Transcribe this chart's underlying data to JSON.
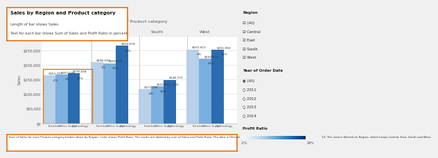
{
  "title": "Sales by Region and Product category",
  "subtitle_line1": "Length of bar shows Sales.",
  "subtitle_line2": "Text for each bar shows Sum of Sales and Profit Ratio in percent.",
  "xlabel": "Region / Product category",
  "ylabel": "Sales",
  "footer": "Sum of Sales for each Product category broken down by Region. Color shows Profit Ratio. The marks are labeled by sum of Sales and Profit Ratio. The data is filtered on Order Date Year, which keeps 2011, 2012, 2013 and 2014. The view is filtered on Region, which keeps Central, East, South and West.",
  "regions": [
    "Central",
    "East",
    "South",
    "West"
  ],
  "categories": [
    "Furniture",
    "Office Suppl.",
    "Technology"
  ],
  "bars": [
    {
      "region": "Central",
      "category": "Furniture",
      "value": 163797,
      "profit_ratio": -2,
      "color": "#b8d0e8"
    },
    {
      "region": "Central",
      "category": "Office Suppl.",
      "value": 167026,
      "profit_ratio": 5,
      "color": "#7aafe0"
    },
    {
      "region": "Central",
      "category": "Technology",
      "value": 170418,
      "profit_ratio": 20,
      "color": "#2b6cb0"
    },
    {
      "region": "East",
      "category": "Furniture",
      "value": 208292,
      "profit_ratio": 1,
      "color": "#b8d0e8"
    },
    {
      "region": "East",
      "category": "Office Suppl.",
      "value": 205516,
      "profit_ratio": 20,
      "color": "#7aafe0"
    },
    {
      "region": "East",
      "category": "Technology",
      "value": 264974,
      "profit_ratio": 18,
      "color": "#2b6cb0"
    },
    {
      "region": "South",
      "category": "Furniture",
      "value": 117299,
      "profit_ratio": 6,
      "color": "#b8d0e8"
    },
    {
      "region": "South",
      "category": "Office Suppl.",
      "value": 125651,
      "profit_ratio": 16,
      "color": "#7aafe0"
    },
    {
      "region": "South",
      "category": "Technology",
      "value": 148772,
      "profit_ratio": 13,
      "color": "#2b6cb0"
    },
    {
      "region": "West",
      "category": "Furniture",
      "value": 252413,
      "profit_ratio": 5,
      "color": "#b8d0e8"
    },
    {
      "region": "West",
      "category": "Office Suppl.",
      "value": 220853,
      "profit_ratio": 24,
      "color": "#7aafe0"
    },
    {
      "region": "West",
      "category": "Technology",
      "value": 251992,
      "profit_ratio": 18,
      "color": "#2b6cb0"
    }
  ],
  "ylim": [
    0,
    300000
  ],
  "yticks": [
    0,
    50000,
    100000,
    150000,
    200000,
    250000,
    300000
  ],
  "highlight_color": "#e8720c",
  "background_color": "#f0f0f0",
  "plot_bg_color": "#ffffff",
  "sidebar_bg": "#f0f0f0",
  "title_box_color": "#e8720c",
  "footer_box_color": "#e8720c"
}
